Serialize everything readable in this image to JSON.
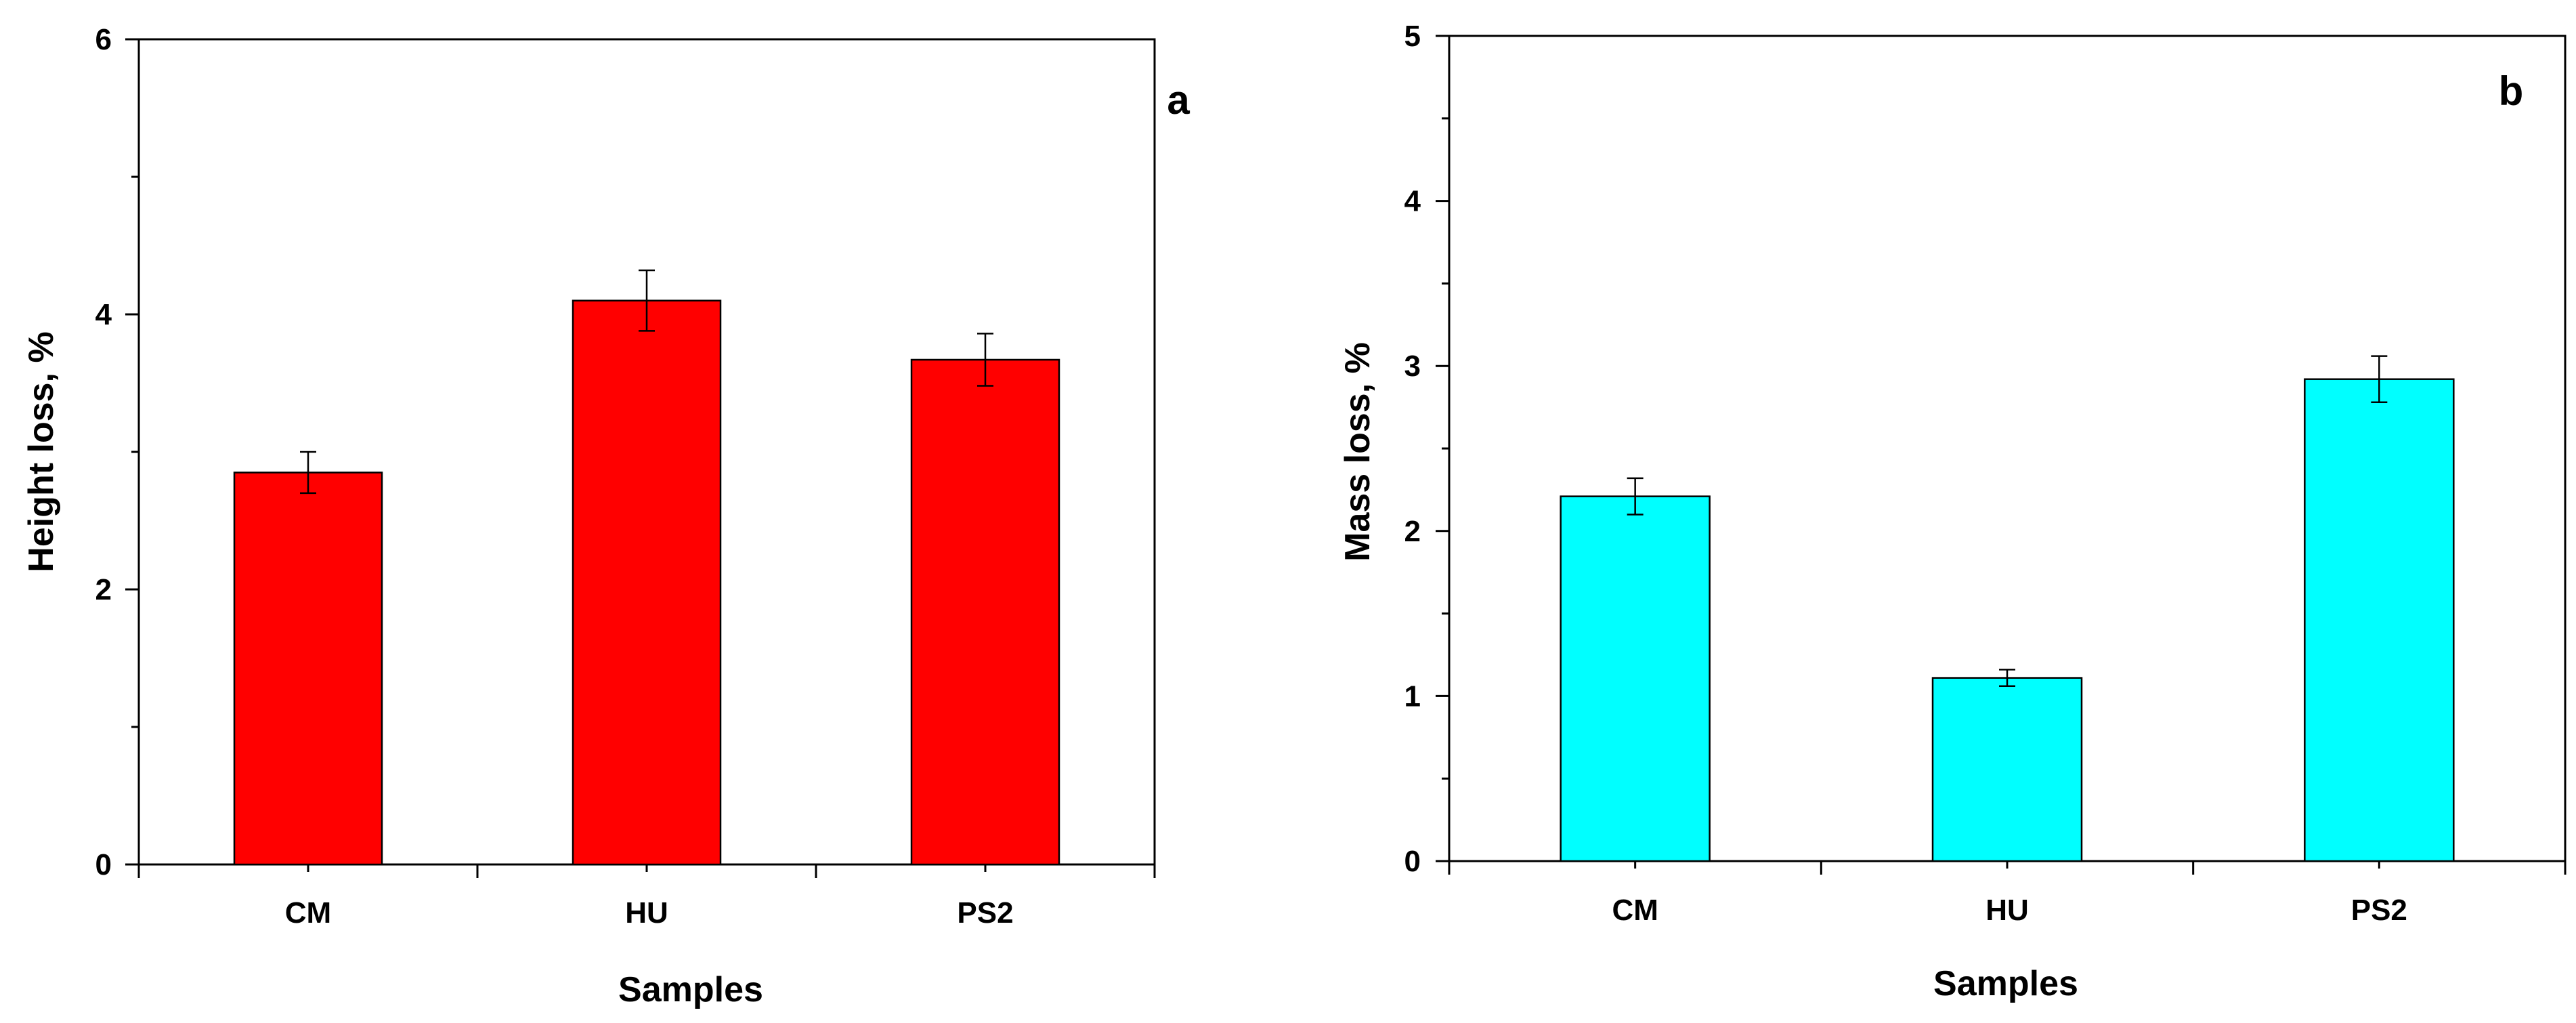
{
  "chart_data": [
    {
      "type": "bar",
      "panel_label": "a",
      "categories": [
        "CM",
        "HU",
        "PS2"
      ],
      "values": [
        2.85,
        4.1,
        3.67
      ],
      "errors": [
        0.15,
        0.22,
        0.19
      ],
      "color": "#ff0000",
      "xlabel": "Samples",
      "ylabel": "Height loss, %",
      "ylim": [
        0,
        6
      ],
      "major_ticks": [
        0,
        2,
        4,
        6
      ],
      "minor_ticks": [
        1,
        3,
        5
      ]
    },
    {
      "type": "bar",
      "panel_label": "b",
      "categories": [
        "CM",
        "HU",
        "PS2"
      ],
      "values": [
        2.21,
        1.11,
        2.92
      ],
      "errors": [
        0.11,
        0.05,
        0.14
      ],
      "color": "#00ffff",
      "xlabel": "Samples",
      "ylabel": "Mass loss, %",
      "ylim": [
        0,
        5
      ],
      "major_ticks": [
        0,
        1,
        2,
        3,
        4,
        5
      ],
      "minor_ticks": [
        0.5,
        1.5,
        2.5,
        3.5,
        4.5
      ]
    }
  ]
}
